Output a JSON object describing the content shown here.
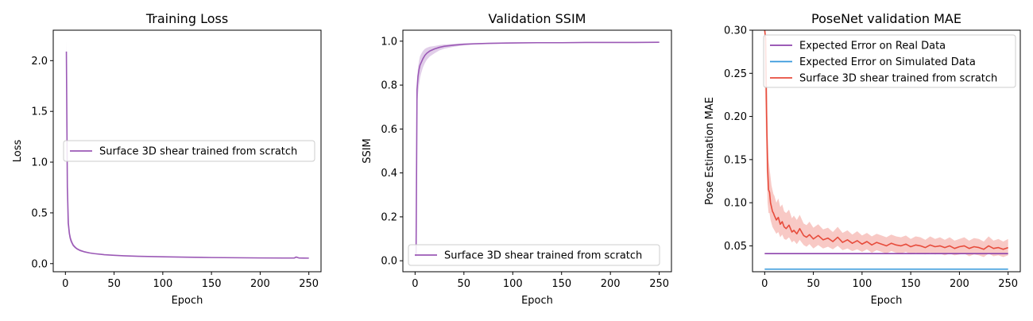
{
  "chart_data": [
    {
      "type": "line",
      "title": "Training Loss",
      "xlabel": "Epoch",
      "ylabel": "Loss",
      "xlim": [
        -12.5,
        262.5
      ],
      "ylim": [
        -0.08,
        2.3
      ],
      "xticks": [
        0,
        50,
        100,
        150,
        200,
        250
      ],
      "xtick_labels": [
        "0",
        "50",
        "100",
        "150",
        "200",
        "250"
      ],
      "yticks": [
        0.0,
        0.5,
        1.0,
        1.5,
        2.0
      ],
      "ytick_labels": [
        "0.0",
        "0.5",
        "1.0",
        "1.5",
        "2.0"
      ],
      "grid": false,
      "legend_position": "center-right",
      "series": [
        {
          "name": "Surface 3D shear trained from scratch",
          "color": "#9b59b6",
          "band_color": "#d7bde2",
          "x": [
            1,
            2,
            3,
            4,
            5,
            6,
            8,
            10,
            12,
            15,
            20,
            25,
            30,
            40,
            50,
            60,
            75,
            100,
            125,
            150,
            175,
            200,
            225,
            235,
            237,
            240,
            250
          ],
          "y": [
            2.09,
            0.75,
            0.4,
            0.3,
            0.25,
            0.22,
            0.18,
            0.16,
            0.145,
            0.13,
            0.115,
            0.105,
            0.098,
            0.088,
            0.082,
            0.077,
            0.072,
            0.067,
            0.063,
            0.06,
            0.058,
            0.056,
            0.055,
            0.055,
            0.065,
            0.055,
            0.054
          ],
          "band_upper": [
            2.19,
            1.2,
            0.5,
            0.36,
            0.29,
            0.25,
            0.2,
            0.175,
            0.155,
            0.14,
            0.122,
            0.11,
            0.102,
            0.092,
            0.085,
            0.08,
            0.075,
            0.07,
            0.066,
            0.063,
            0.061,
            0.059,
            0.058,
            0.058,
            0.07,
            0.058,
            0.057
          ],
          "band_lower": [
            1.7,
            0.4,
            0.33,
            0.26,
            0.22,
            0.2,
            0.17,
            0.15,
            0.137,
            0.122,
            0.109,
            0.1,
            0.094,
            0.085,
            0.079,
            0.074,
            0.07,
            0.065,
            0.061,
            0.058,
            0.056,
            0.054,
            0.053,
            0.053,
            0.058,
            0.053,
            0.052
          ]
        }
      ]
    },
    {
      "type": "line",
      "title": "Validation SSIM",
      "xlabel": "Epoch",
      "ylabel": "SSIM",
      "xlim": [
        -12.5,
        262.5
      ],
      "ylim": [
        -0.05,
        1.05
      ],
      "xticks": [
        0,
        50,
        100,
        150,
        200,
        250
      ],
      "xtick_labels": [
        "0",
        "50",
        "100",
        "150",
        "200",
        "250"
      ],
      "yticks": [
        0.0,
        0.2,
        0.4,
        0.6,
        0.8,
        1.0
      ],
      "ytick_labels": [
        "0.0",
        "0.2",
        "0.4",
        "0.6",
        "0.8",
        "1.0"
      ],
      "grid": false,
      "legend_position": "lower-right",
      "series": [
        {
          "name": "Surface 3D shear trained from scratch",
          "color": "#9b59b6",
          "band_color": "#d7bde2",
          "x": [
            1,
            2,
            3,
            4,
            5,
            6,
            8,
            10,
            12,
            15,
            20,
            25,
            30,
            40,
            50,
            60,
            75,
            100,
            125,
            150,
            175,
            200,
            225,
            250
          ],
          "y": [
            0.02,
            0.78,
            0.84,
            0.87,
            0.89,
            0.9,
            0.92,
            0.935,
            0.945,
            0.955,
            0.965,
            0.972,
            0.977,
            0.982,
            0.986,
            0.988,
            0.99,
            0.992,
            0.993,
            0.993,
            0.994,
            0.994,
            0.994,
            0.995
          ],
          "band_upper": [
            0.06,
            0.83,
            0.88,
            0.91,
            0.93,
            0.94,
            0.955,
            0.965,
            0.97,
            0.975,
            0.978,
            0.982,
            0.985,
            0.988,
            0.99,
            0.991,
            0.992,
            0.994,
            0.995,
            0.995,
            0.996,
            0.996,
            0.996,
            0.997
          ],
          "band_lower": [
            0.0,
            0.7,
            0.76,
            0.8,
            0.83,
            0.85,
            0.88,
            0.9,
            0.915,
            0.93,
            0.945,
            0.958,
            0.966,
            0.975,
            0.981,
            0.984,
            0.987,
            0.99,
            0.991,
            0.991,
            0.992,
            0.992,
            0.992,
            0.993
          ]
        }
      ]
    },
    {
      "type": "line",
      "title": "PoseNet validation MAE",
      "xlabel": "Epoch",
      "ylabel": "Pose Estimation MAE",
      "xlim": [
        -12.5,
        262.5
      ],
      "ylim": [
        0.02,
        0.3
      ],
      "xticks": [
        0,
        50,
        100,
        150,
        200,
        250
      ],
      "xtick_labels": [
        "0",
        "50",
        "100",
        "150",
        "200",
        "250"
      ],
      "yticks": [
        0.05,
        0.1,
        0.15,
        0.2,
        0.25,
        0.3
      ],
      "ytick_labels": [
        "0.05",
        "0.10",
        "0.15",
        "0.20",
        "0.25",
        "0.30"
      ],
      "grid": false,
      "legend_position": "upper-right",
      "series": [
        {
          "name": "Expected Error on Real Data",
          "color": "#8e44ad",
          "x": [
            0,
            250
          ],
          "y": [
            0.041,
            0.041
          ]
        },
        {
          "name": "Expected Error on Simulated Data",
          "color": "#3498db",
          "x": [
            0,
            250
          ],
          "y": [
            0.023,
            0.023
          ]
        },
        {
          "name": "Surface 3D shear trained from scratch",
          "color": "#e74c3c",
          "band_color": "#f5b7b1",
          "x": [
            0,
            1,
            2,
            3,
            4,
            5,
            6,
            7,
            8,
            9,
            10,
            12,
            14,
            16,
            18,
            20,
            22,
            25,
            28,
            30,
            33,
            36,
            40,
            43,
            46,
            50,
            55,
            60,
            65,
            70,
            75,
            80,
            85,
            90,
            95,
            100,
            105,
            110,
            115,
            120,
            125,
            130,
            135,
            140,
            145,
            150,
            155,
            160,
            165,
            170,
            175,
            180,
            185,
            190,
            195,
            200,
            205,
            210,
            215,
            220,
            225,
            230,
            235,
            240,
            245,
            250
          ],
          "y": [
            0.3,
            0.29,
            0.2,
            0.14,
            0.115,
            0.112,
            0.1,
            0.095,
            0.09,
            0.088,
            0.085,
            0.08,
            0.083,
            0.075,
            0.078,
            0.072,
            0.07,
            0.074,
            0.066,
            0.068,
            0.064,
            0.07,
            0.062,
            0.06,
            0.063,
            0.058,
            0.062,
            0.057,
            0.059,
            0.055,
            0.06,
            0.054,
            0.057,
            0.053,
            0.056,
            0.052,
            0.055,
            0.051,
            0.054,
            0.052,
            0.05,
            0.053,
            0.051,
            0.05,
            0.052,
            0.049,
            0.051,
            0.05,
            0.048,
            0.051,
            0.049,
            0.05,
            0.048,
            0.05,
            0.047,
            0.049,
            0.05,
            0.047,
            0.049,
            0.048,
            0.046,
            0.05,
            0.047,
            0.048,
            0.046,
            0.048
          ],
          "band_upper": [
            0.3,
            0.3,
            0.26,
            0.18,
            0.15,
            0.14,
            0.13,
            0.12,
            0.115,
            0.11,
            0.108,
            0.1,
            0.105,
            0.095,
            0.098,
            0.09,
            0.088,
            0.092,
            0.082,
            0.085,
            0.08,
            0.086,
            0.076,
            0.074,
            0.078,
            0.071,
            0.075,
            0.069,
            0.071,
            0.066,
            0.072,
            0.065,
            0.068,
            0.063,
            0.067,
            0.062,
            0.065,
            0.061,
            0.064,
            0.062,
            0.06,
            0.063,
            0.061,
            0.06,
            0.062,
            0.058,
            0.061,
            0.06,
            0.057,
            0.061,
            0.058,
            0.06,
            0.057,
            0.06,
            0.056,
            0.058,
            0.06,
            0.056,
            0.059,
            0.058,
            0.055,
            0.061,
            0.056,
            0.058,
            0.055,
            0.058
          ],
          "band_lower": [
            0.25,
            0.2,
            0.14,
            0.1,
            0.088,
            0.088,
            0.08,
            0.076,
            0.072,
            0.07,
            0.068,
            0.064,
            0.066,
            0.06,
            0.063,
            0.058,
            0.057,
            0.06,
            0.054,
            0.056,
            0.052,
            0.057,
            0.051,
            0.049,
            0.052,
            0.047,
            0.051,
            0.047,
            0.049,
            0.046,
            0.05,
            0.045,
            0.047,
            0.044,
            0.046,
            0.043,
            0.046,
            0.042,
            0.045,
            0.043,
            0.041,
            0.044,
            0.042,
            0.041,
            0.043,
            0.04,
            0.042,
            0.041,
            0.04,
            0.042,
            0.04,
            0.041,
            0.039,
            0.041,
            0.039,
            0.04,
            0.041,
            0.038,
            0.04,
            0.039,
            0.037,
            0.041,
            0.038,
            0.039,
            0.037,
            0.039
          ]
        }
      ]
    }
  ]
}
